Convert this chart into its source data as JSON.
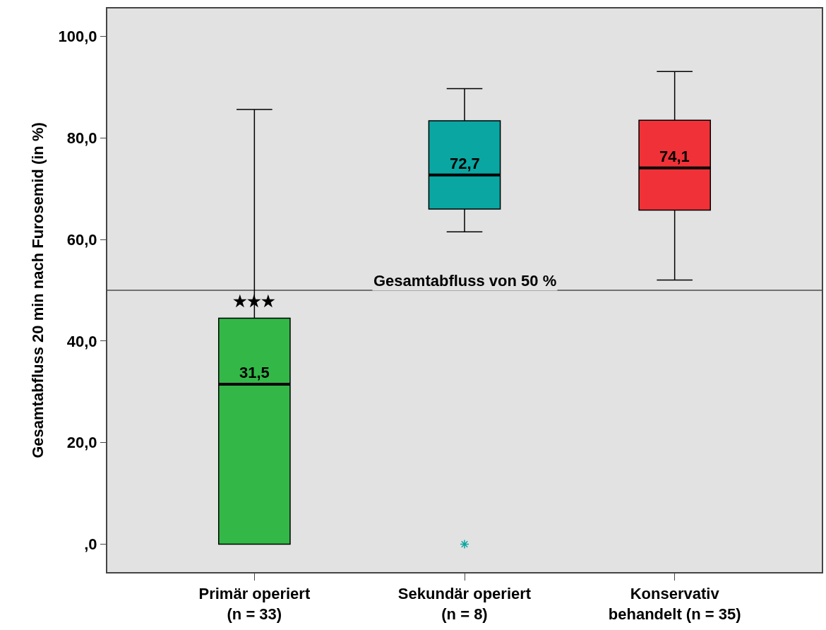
{
  "chart_data": {
    "type": "box",
    "ylabel": "Gesamtabfluss 20 min nach Furosemid (in %)",
    "categories": [
      "Primär operiert\n(n = 33)",
      "Sekundär operiert\n(n = 8)",
      "Konservativ\nbehandelt (n = 35)"
    ],
    "colors": [
      "#33b848",
      "#0aa6a2",
      "#f03238"
    ],
    "boxes": [
      {
        "low": 0,
        "q1": 0,
        "median": 31.5,
        "q3": 44.5,
        "high": 85.6
      },
      {
        "low": 61.5,
        "q1": 66.0,
        "median": 72.7,
        "q3": 83.4,
        "high": 89.7,
        "outliers": [
          0
        ]
      },
      {
        "low": 52.0,
        "q1": 65.8,
        "median": 74.1,
        "q3": 83.5,
        "high": 93.1
      }
    ],
    "ylim": [
      -5.5,
      105.5
    ],
    "yticks": [
      {
        "value": 0,
        "label": ",0"
      },
      {
        "value": 20,
        "label": "20,0"
      },
      {
        "value": 40,
        "label": "40,0"
      },
      {
        "value": 60,
        "label": "60,0"
      },
      {
        "value": 80,
        "label": "80,0"
      },
      {
        "value": 100,
        "label": "100,0"
      }
    ],
    "ref_lines": [
      {
        "axis": "y",
        "value": 50,
        "label": "Gesamtabfluss von 50 %",
        "color": "#000000"
      }
    ],
    "annotations": [
      {
        "text": "31,5",
        "x": "Primär operiert\n(n = 33)",
        "y": 31.5
      },
      {
        "text": "72,7",
        "x": "Sekundär operiert\n(n = 8)",
        "y": 72.7
      },
      {
        "text": "74,1",
        "x": "Konservativ\nbehandelt (n = 35)",
        "y": 74.1
      },
      {
        "text": "★★★",
        "x": "Primär operiert\n(n = 33)",
        "y": 45.5
      }
    ],
    "grid": false
  }
}
